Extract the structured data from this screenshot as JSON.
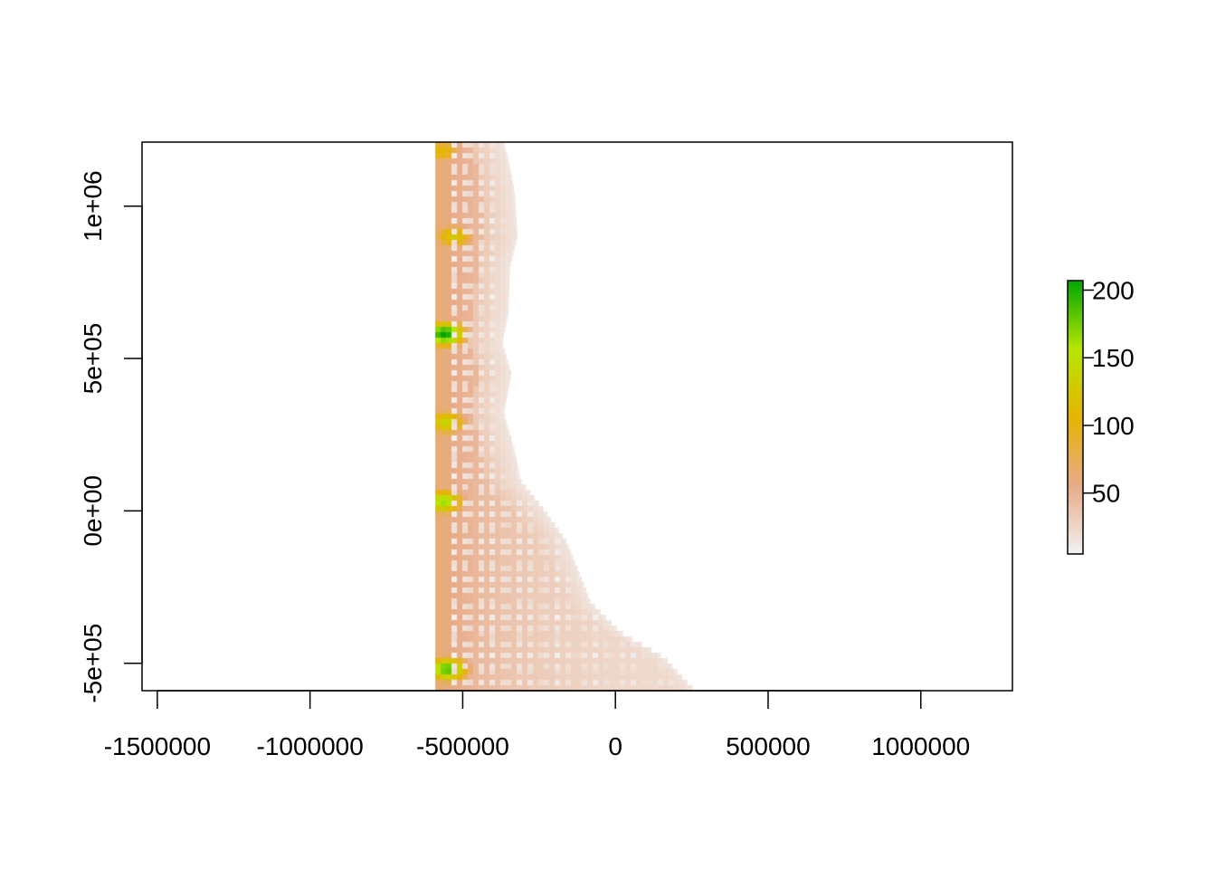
{
  "chart_data": {
    "type": "heatmap",
    "title": "",
    "xlabel": "",
    "ylabel": "",
    "xlim": [
      -1550000,
      1300000
    ],
    "ylim": [
      -590000,
      1210000
    ],
    "x_ticks": [
      {
        "value": -1500000,
        "label": "-1500000"
      },
      {
        "value": -1000000,
        "label": "-1000000"
      },
      {
        "value": -500000,
        "label": "-500000"
      },
      {
        "value": 0,
        "label": "0"
      },
      {
        "value": 500000,
        "label": "500000"
      },
      {
        "value": 1000000,
        "label": "1000000"
      }
    ],
    "y_ticks": [
      {
        "value": -500000,
        "label": "-5e+05"
      },
      {
        "value": 0,
        "label": "0e+00"
      },
      {
        "value": 500000,
        "label": "5e+05"
      },
      {
        "value": 1000000,
        "label": "1e+06"
      }
    ],
    "raster": {
      "x_min": -590000,
      "value_range": [
        5,
        207
      ],
      "east_edge": [
        {
          "y": 1210000,
          "x": -365000
        },
        {
          "y": 1150000,
          "x": -350000
        },
        {
          "y": 1050000,
          "x": -330000
        },
        {
          "y": 900000,
          "x": -320000
        },
        {
          "y": 800000,
          "x": -345000
        },
        {
          "y": 650000,
          "x": -350000
        },
        {
          "y": 550000,
          "x": -370000
        },
        {
          "y": 450000,
          "x": -340000
        },
        {
          "y": 320000,
          "x": -365000
        },
        {
          "y": 200000,
          "x": -330000
        },
        {
          "y": 100000,
          "x": -310000
        },
        {
          "y": 0,
          "x": -230000
        },
        {
          "y": -100000,
          "x": -160000
        },
        {
          "y": -300000,
          "x": -80000
        },
        {
          "y": -400000,
          "x": 20000
        },
        {
          "y": -480000,
          "x": 160000
        },
        {
          "y": -590000,
          "x": 260000
        }
      ],
      "peaks": [
        {
          "x": -560000,
          "y": 580000,
          "value": 207
        },
        {
          "x": -565000,
          "y": 30000,
          "value": 165
        },
        {
          "x": -550000,
          "y": -520000,
          "value": 185
        },
        {
          "x": -555000,
          "y": 290000,
          "value": 140
        },
        {
          "x": -530000,
          "y": 900000,
          "value": 125
        },
        {
          "x": -570000,
          "y": 1180000,
          "value": 110
        }
      ]
    },
    "legend": {
      "placement": "right",
      "ticks": [
        {
          "value": 50,
          "label": "50"
        },
        {
          "value": 100,
          "label": "100"
        },
        {
          "value": 150,
          "label": "150"
        },
        {
          "value": 200,
          "label": "200"
        }
      ],
      "colors": [
        "#f2f2f2",
        "#e8ab88",
        "#e6b400",
        "#b6e600",
        "#00a600"
      ]
    }
  }
}
